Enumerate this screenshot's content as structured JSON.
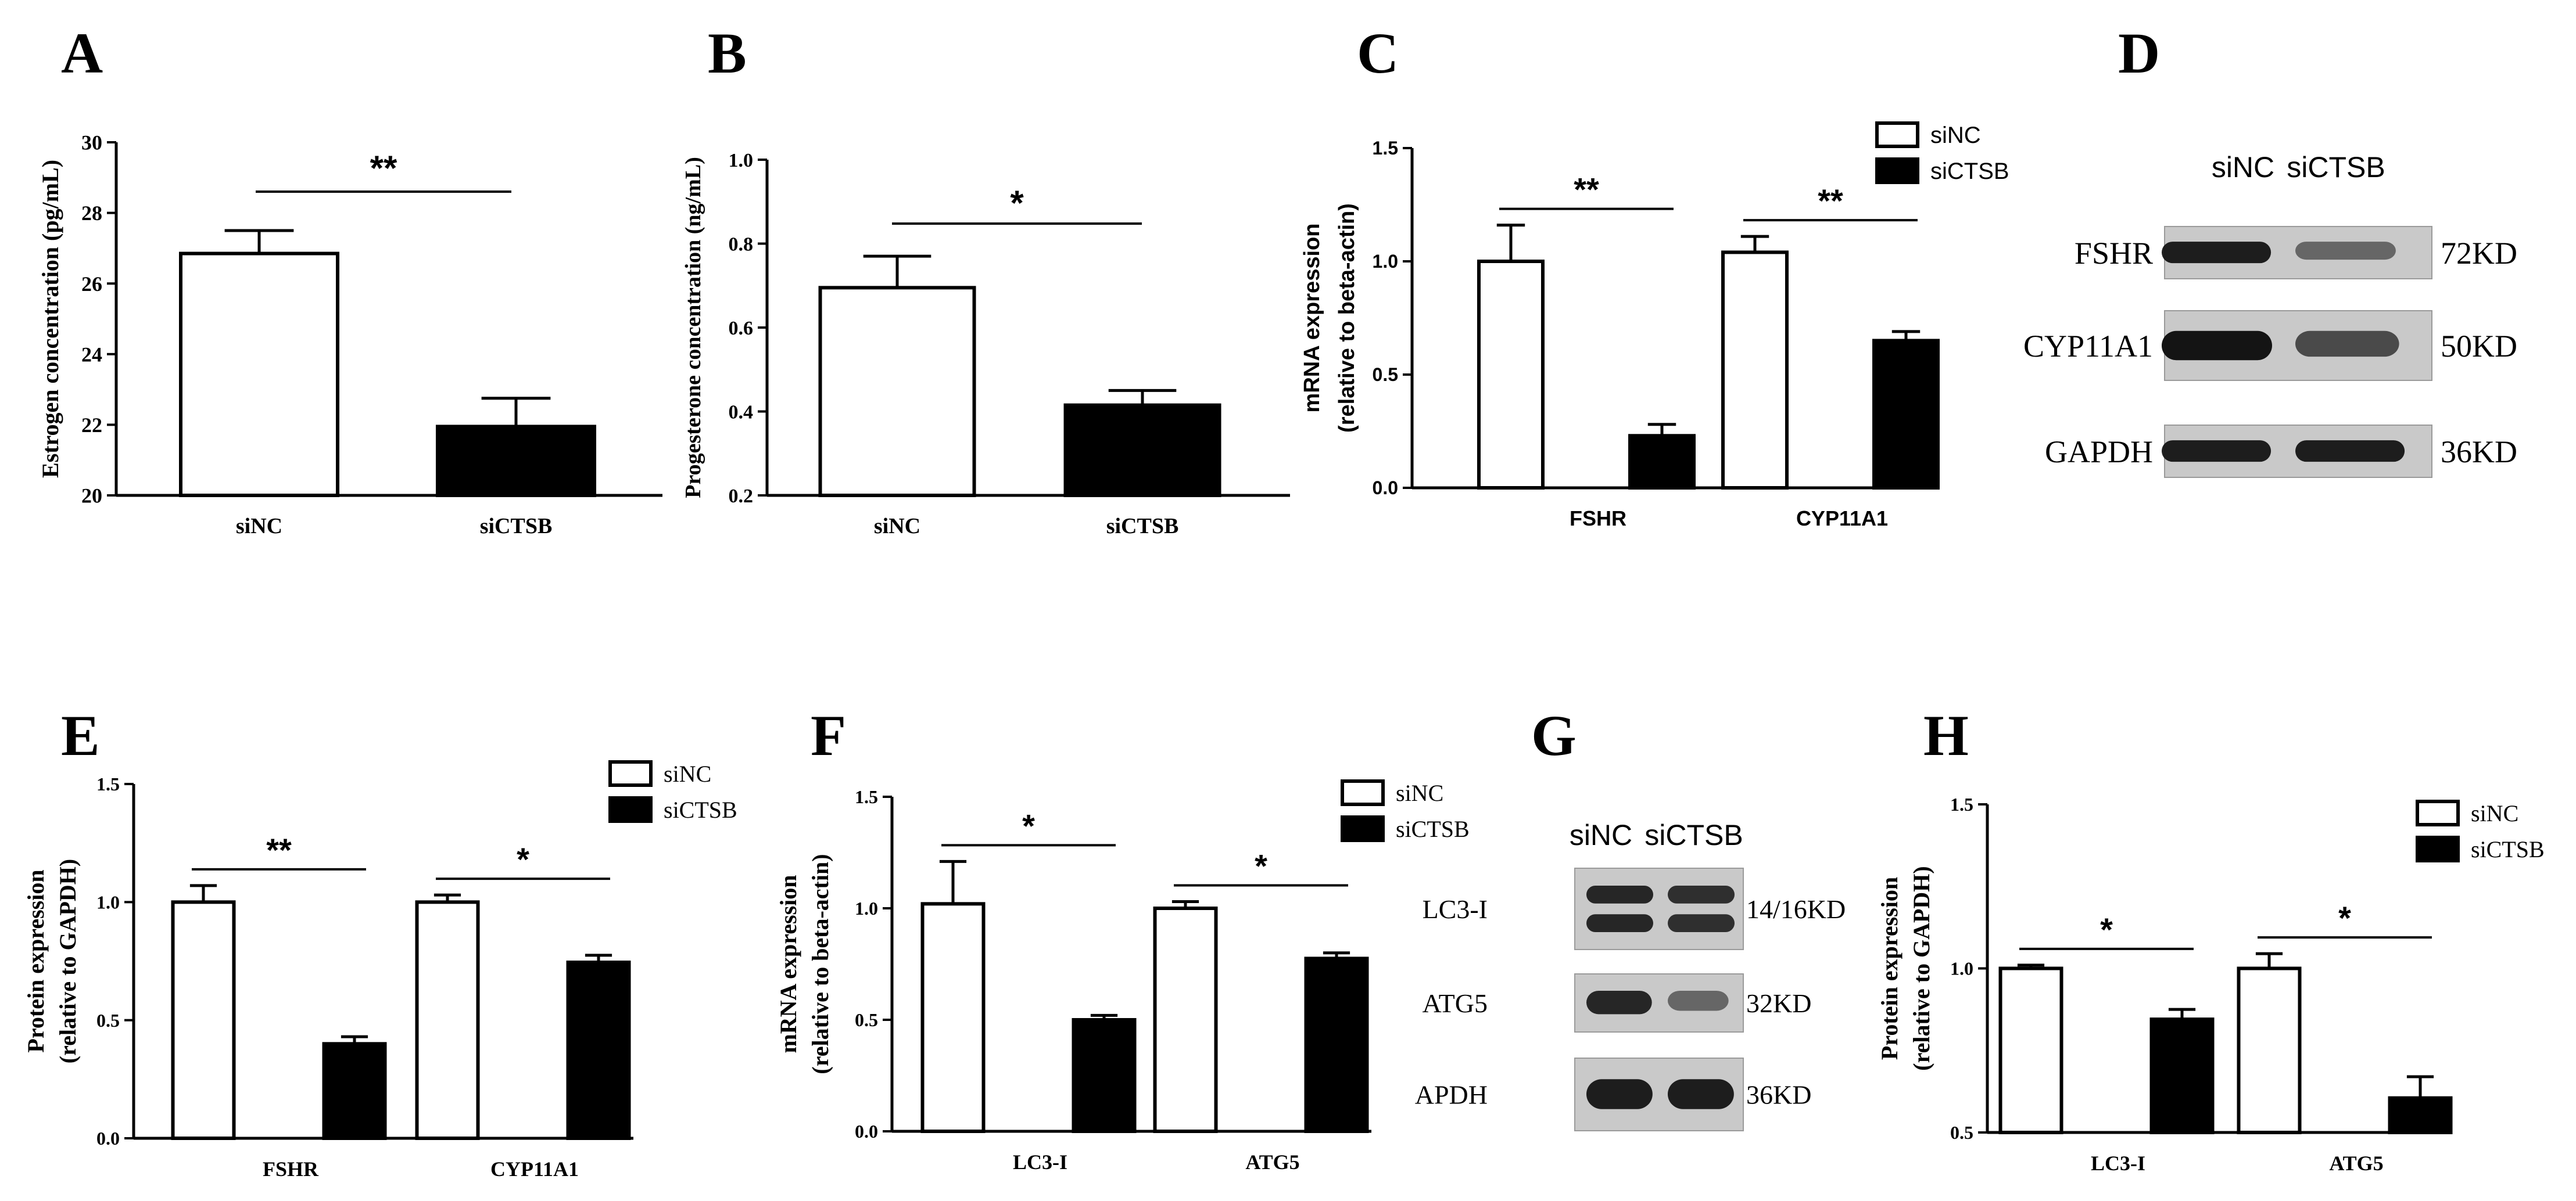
{
  "colors": {
    "siNC": "#ffffff",
    "siCTSB": "#000000",
    "axis": "#000000",
    "blot_bg": "#c9c9c9",
    "band": "#141414"
  },
  "chart_data": [
    {
      "panel": "A",
      "type": "bar",
      "categories": [
        "siNC",
        "siCTSB"
      ],
      "series": [
        {
          "values": [
            26.85,
            21.95
          ],
          "errors": [
            0.65,
            0.8
          ]
        }
      ],
      "ylabel": "Estrogen concentration (pg/mL)",
      "xlabel": "",
      "ylim": [
        20,
        30
      ],
      "yticks": [
        "20",
        "22",
        "24",
        "26",
        "28",
        "30"
      ],
      "grid": false,
      "significance": [
        {
          "label": "**",
          "from": 0,
          "to": 1
        }
      ]
    },
    {
      "panel": "B",
      "type": "bar",
      "categories": [
        "siNC",
        "siCTSB"
      ],
      "series": [
        {
          "values": [
            0.695,
            0.415
          ],
          "errors": [
            0.075,
            0.035
          ]
        }
      ],
      "ylabel": "Progesterone concentration (ng/mL)",
      "xlabel": "",
      "ylim": [
        0.2,
        1.0
      ],
      "yticks": [
        "0.2",
        "0.4",
        "0.6",
        "0.8",
        "1.0"
      ],
      "grid": false,
      "significance": [
        {
          "label": "*",
          "from": 0,
          "to": 1
        }
      ]
    },
    {
      "panel": "C",
      "type": "bar",
      "categories": [
        "FSHR",
        "CYP11A1"
      ],
      "series": [
        {
          "name": "siNC",
          "values": [
            1.0,
            1.04
          ],
          "errors": [
            0.16,
            0.07
          ]
        },
        {
          "name": "siCTSB",
          "values": [
            0.23,
            0.65
          ],
          "errors": [
            0.05,
            0.04
          ]
        }
      ],
      "ylabel": "mRNA expression",
      "ylabel2": "(relative to beta-actin)",
      "xlabel": "",
      "ylim": [
        0,
        1.5
      ],
      "yticks": [
        "0.0",
        "0.5",
        "1.0",
        "1.5"
      ],
      "grid": false,
      "legend": "top-right",
      "significance": [
        {
          "label": "**",
          "category": 0
        },
        {
          "label": "**",
          "category": 1
        }
      ]
    },
    {
      "panel": "E",
      "type": "bar",
      "categories": [
        "FSHR",
        "CYP11A1"
      ],
      "series": [
        {
          "name": "siNC",
          "values": [
            1.0,
            1.0
          ],
          "errors": [
            0.07,
            0.03
          ]
        },
        {
          "name": "siCTSB",
          "values": [
            0.4,
            0.745
          ],
          "errors": [
            0.03,
            0.03
          ]
        }
      ],
      "ylabel": "Protein expression",
      "ylabel2": "(relative to GAPDH)",
      "xlabel": "",
      "ylim": [
        0,
        1.5
      ],
      "yticks": [
        "0.0",
        "0.5",
        "1.0",
        "1.5"
      ],
      "grid": false,
      "legend": "top-right",
      "significance": [
        {
          "label": "**",
          "category": 0
        },
        {
          "label": "*",
          "category": 1
        }
      ]
    },
    {
      "panel": "F",
      "type": "bar",
      "categories": [
        "LC3-I",
        "ATG5"
      ],
      "series": [
        {
          "name": "siNC",
          "values": [
            1.02,
            1.0
          ],
          "errors": [
            0.19,
            0.03
          ]
        },
        {
          "name": "siCTSB",
          "values": [
            0.5,
            0.775
          ],
          "errors": [
            0.02,
            0.025
          ]
        }
      ],
      "ylabel": "mRNA expression",
      "ylabel2": "(relative to beta-actin)",
      "xlabel": "",
      "ylim": [
        0,
        1.5
      ],
      "yticks": [
        "0.0",
        "0.5",
        "1.0",
        "1.5"
      ],
      "grid": false,
      "legend": "top-right",
      "significance": [
        {
          "label": "*",
          "category": 0
        },
        {
          "label": "*",
          "category": 1
        }
      ]
    },
    {
      "panel": "H",
      "type": "bar",
      "categories": [
        "LC3-I",
        "ATG5"
      ],
      "series": [
        {
          "name": "siNC",
          "values": [
            1.0,
            1.0
          ],
          "errors": [
            0.01,
            0.045
          ]
        },
        {
          "name": "siCTSB",
          "values": [
            0.845,
            0.605
          ],
          "errors": [
            0.03,
            0.065
          ]
        }
      ],
      "ylabel": "Protein expression",
      "ylabel2": "(relative to GAPDH)",
      "xlabel": "",
      "ylim": [
        0.5,
        1.5
      ],
      "yticks": [
        "0.5",
        "1.0",
        "1.5"
      ],
      "grid": false,
      "legend": "top-right",
      "significance": [
        {
          "label": "*",
          "category": 0
        },
        {
          "label": "*",
          "category": 1
        }
      ]
    }
  ],
  "blots": [
    {
      "panel": "D",
      "lanes": [
        "siNC",
        "siCTSB"
      ],
      "rows": [
        {
          "protein": "FSHR",
          "size": "72KD",
          "intensity": [
            0.95,
            0.55
          ]
        },
        {
          "protein": "CYP11A1",
          "size": "50KD",
          "intensity": [
            1.0,
            0.7
          ]
        },
        {
          "protein": "GAPDH",
          "size": "36KD",
          "intensity": [
            0.95,
            0.95
          ]
        }
      ]
    },
    {
      "panel": "G",
      "lanes": [
        "siNC",
        "siCTSB"
      ],
      "rows": [
        {
          "protein": "LC3-I",
          "size": "14/16KD",
          "intensity": [
            0.9,
            0.85
          ]
        },
        {
          "protein": "ATG5",
          "size": "32KD",
          "intensity": [
            0.9,
            0.55
          ]
        },
        {
          "protein": "APDH",
          "size": "36KD",
          "intensity": [
            0.95,
            0.95
          ]
        }
      ]
    }
  ]
}
